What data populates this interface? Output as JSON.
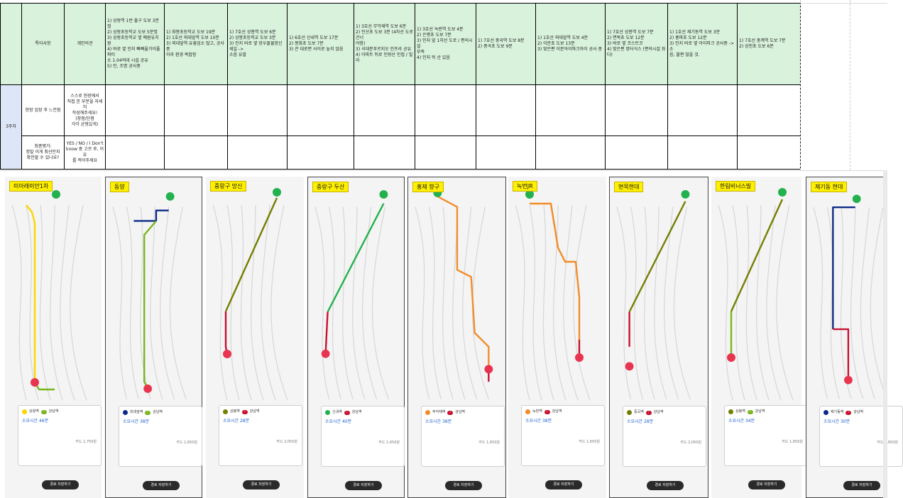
{
  "sheet": {
    "header_labels": {
      "remarks": "특이사항",
      "opinion": "개인의견"
    },
    "site_notes": [
      "1) 상왕역 1번 출구 도보 3분컷\n2) 상왕초등학교 도보 5분컷\n3) 상왕초등학교 옆 예원유치원\n4) 바로 옆 인지 빠빠울가이풀파티\n소 1.04억대 시설 공유\n5) 인, 조명 공사중",
      "1) 화봉초등학교 도보 19분\n2) 1호선 외대앞역 도보 10분\n3) 외대앞역 유흥업소 많고, 공사중\n이라 환경 복잡함",
      "1) 7호선 상봉역 도보 6분\n2) 상봉초등학교 도보 3분\n3) 인지 바로 옆 망우물물망신 세일 ->\n소음 유발",
      "1) 6호선 신내역 도보 17분\n2) 봉화초 도보 7분\n3) 큰 대로변 사이로 높지 않음",
      "1) 3호선 무악재역 도보 6분\n2) 인산초 도보 3분 (4차선 도로 건너\n야함)\n3) 서대문푸르지오 인프라 공유\n4) 아파트 뒤로 인왕산 인접 / 빌라",
      "1) 3호선 녹번역 도보 4분\n2) 은평초 도보 7분\n3) 인지 앞 1차선 도로 / 편의시설\n부족\n4) 인지 뒤 산 있음",
      "1) 7호선 중곡역 도보 8분\n2) 중곡초 도보 9분",
      "1) 1호선 외대앞역 도보 4분\n2) 이문초 도보 13분\n3) 맞은편 이문아이파크자이 공사 중",
      "1) 7호선 상봉역 도보 7분\n2) 면목초 도보 12분\n3) 바로 옆 코스트코\n4) 맞은편 망터식스 (편의시설 좌다)",
      "1) 1호선 제기동역 도보 3분\n2) 홍파초 도보 12분\n3) 인지 바로 옆 아이파크 공사중 -> 소\n음, 불편 많을 것.",
      "1) 7호선 중계역 도보 7분\n2) 상천초 도보 6분"
    ],
    "week_label": "3주차",
    "rows": [
      {
        "label": "현장 임장 후 느낀점",
        "opinion": "스스로 현장에서\n직접 본 부분을 자세히\n작성해주세요!\n(장점/단점\n각각 균형있게)"
      },
      {
        "label": "최종평가:\n정말 이게 최선인지\n확인할 수 있나요?",
        "opinion": "YES / NO / I Don't\nknow 중 고르 후, 이유\n를 적어주세요"
      }
    ]
  },
  "colors": {
    "header_green": "#d9f2dc",
    "tag_yellow": "#ffef00",
    "line_orange": "#f28c28",
    "line_olive": "#747f00",
    "line_red": "#c8102e",
    "line_green": "#7ab51d",
    "line_navy": "#0b2a87",
    "line_yellow": "#fcd600",
    "pin_green": "#22b14c",
    "pin_red": "#e8344e"
  },
  "panels": [
    {
      "title": "미아래미안1차",
      "framed": false,
      "route_a": "상왕역",
      "route_b": "강남역",
      "line_a": "#fcd600",
      "line_b": "#7ab51d",
      "time": "소요시간 46분",
      "fare": "카드 1,750원",
      "button": "경로 저장하기"
    },
    {
      "title": "동양",
      "framed": true,
      "route_a": "외대앞역",
      "route_b": "강남역",
      "line_a": "#0b2a87",
      "line_b": "#7ab51d",
      "time": "소요시간 38분",
      "fare": "카드 1,650원",
      "button": "경로 저장하기"
    },
    {
      "title": "중랑구 망신",
      "framed": false,
      "route_a": "상봉역",
      "route_b": "강남역",
      "line_a": "#747f00",
      "line_b": "#c8102e",
      "time": "소요시간 28분",
      "fare": "카드 2,050원",
      "button": "경로 저장하기"
    },
    {
      "title": "중랑구 두산",
      "framed": true,
      "route_a": "신내역",
      "route_b": "강남역",
      "line_a": "#22b14c",
      "line_b": "#c8102e",
      "time": "소요시간 40분",
      "fare": "카드 1,650원",
      "button": "경로 저장하기"
    },
    {
      "title": "홍제 향구",
      "framed": true,
      "route_a": "무악재역",
      "route_b": "강남역",
      "line_a": "#f28c28",
      "line_b": "#c8102e",
      "time": "소요시간 38분",
      "fare": "카드 1,650원",
      "button": "경로 저장하기"
    },
    {
      "title": "녹번JR",
      "framed": false,
      "route_a": "녹번역",
      "route_b": "강남역",
      "line_a": "#f28c28",
      "line_b": "#c8102e",
      "time": "소요시간 38분",
      "fare": "카드 1,650원",
      "button": "경로 저장하기"
    },
    {
      "title": "면목현대",
      "framed": true,
      "route_a": "중곡역",
      "route_b": "강남역",
      "line_a": "#747f00",
      "line_b": "#c8102e",
      "time": "소요시간 28분",
      "fare": "카드 2,050원",
      "button": "경로 저장하기"
    },
    {
      "title": "한림비너스빌",
      "framed": false,
      "route_a": "상봉역",
      "route_b": "강남역",
      "line_a": "#747f00",
      "line_b": "#7ab51d",
      "time": "소요시간 34분",
      "fare": "카드 1,650원",
      "button": "경로 저장하기"
    },
    {
      "title": "제기동 현대",
      "framed": true,
      "route_a": "제기동역",
      "route_b": "강남역",
      "line_a": "#0b2a87",
      "line_b": "#c8102e",
      "time": "소요시간 30분",
      "fare": "카드 1,650원",
      "button": "경로 저장하기"
    }
  ]
}
